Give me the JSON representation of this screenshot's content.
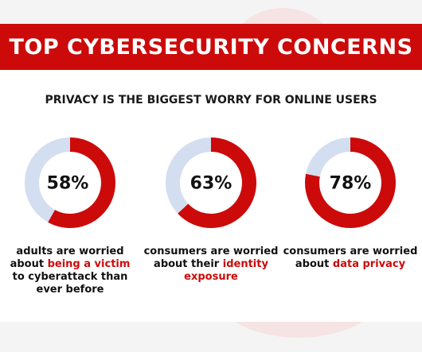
{
  "title": "TOP CYBERSECURITY CONCERNS",
  "subtitle": "PRIVACY IS THE BIGGEST WORRY FOR ONLINE USERS",
  "colors": {
    "accent": "#cc0a0a",
    "remainder": "#d3def0",
    "text": "#111111"
  },
  "chart_data": [
    {
      "type": "pie",
      "donut": true,
      "value": 58,
      "label": "58%",
      "caption": {
        "before": "adults are worried about ",
        "highlight": "being a victim",
        "after": " to cyberattack than ever before"
      }
    },
    {
      "type": "pie",
      "donut": true,
      "value": 63,
      "label": "63%",
      "caption": {
        "before": "consumers are worried about their ",
        "highlight": "identity exposure",
        "after": ""
      }
    },
    {
      "type": "pie",
      "donut": true,
      "value": 78,
      "label": "78%",
      "caption": {
        "before": "consumers are worried about ",
        "highlight": "data privacy",
        "after": ""
      }
    }
  ]
}
